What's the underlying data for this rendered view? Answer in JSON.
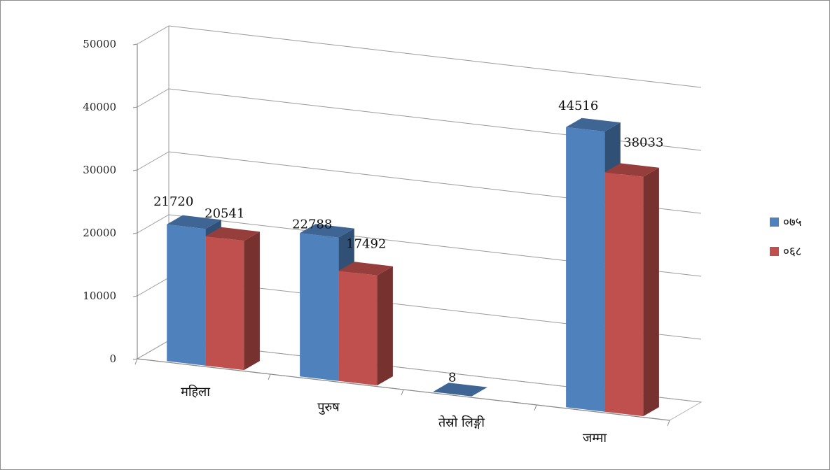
{
  "chart_data": {
    "type": "bar",
    "categories": [
      "महिला",
      "पुरुष",
      "तेस्रो लिङ्गी",
      "जम्मा"
    ],
    "series": [
      {
        "name": "०७५",
        "values": [
          21720,
          22788,
          8,
          44516
        ],
        "color": "#4f81bd"
      },
      {
        "name": "०६८",
        "values": [
          20541,
          17492,
          null,
          38033
        ],
        "color": "#c0504d"
      }
    ],
    "data_labels": [
      [
        "21720",
        "22788",
        "8",
        "44516"
      ],
      [
        "20541",
        "17492",
        "",
        "38033"
      ]
    ],
    "y_ticks": [
      "0",
      "10000",
      "20000",
      "30000",
      "40000",
      "50000"
    ],
    "ylim": [
      0,
      50000
    ],
    "grid": true,
    "legend_position": "right",
    "style": "3d-clustered-column"
  }
}
